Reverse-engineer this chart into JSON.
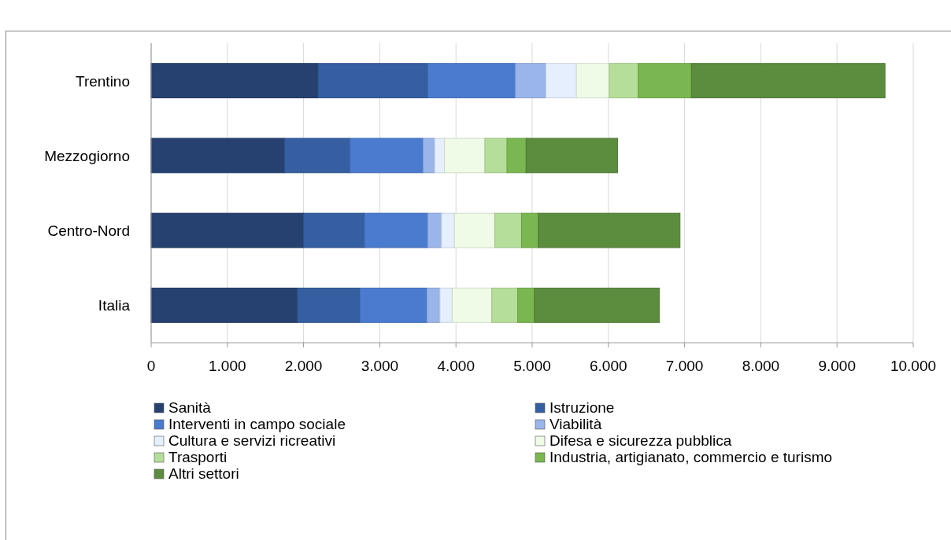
{
  "chart_data": {
    "type": "bar",
    "orientation": "horizontal",
    "stacked": true,
    "categories": [
      "Trentino",
      "Mezzogiorno",
      "Centro-Nord",
      "Italia"
    ],
    "series": [
      {
        "name": "Sanità",
        "color": "#264170",
        "values": [
          2190,
          1750,
          2000,
          1920
        ]
      },
      {
        "name": "Istruzione",
        "color": "#355fa0",
        "values": [
          1440,
          860,
          800,
          820
        ]
      },
      {
        "name": "Interventi in campo sociale",
        "color": "#4a7bcf",
        "values": [
          1150,
          960,
          830,
          880
        ]
      },
      {
        "name": "Viabilità",
        "color": "#9ab5ea",
        "values": [
          400,
          150,
          180,
          170
        ]
      },
      {
        "name": "Cultura e servizi ricreativi",
        "color": "#e6effd",
        "values": [
          400,
          130,
          170,
          160
        ]
      },
      {
        "name": "Difesa e sicurezza pubblica",
        "color": "#effbe6",
        "values": [
          430,
          530,
          530,
          520
        ]
      },
      {
        "name": "Trasporti",
        "color": "#b5de9a",
        "values": [
          380,
          290,
          350,
          340
        ]
      },
      {
        "name": "Industria, artigianato, commercio e turismo",
        "color": "#7ab750",
        "values": [
          700,
          250,
          220,
          220
        ]
      },
      {
        "name": "Altri settori",
        "color": "#5c8c3e",
        "values": [
          2540,
          1200,
          1860,
          1640
        ]
      }
    ],
    "xlim": [
      0,
      10000
    ],
    "xticks": [
      0,
      {
        "value": 1000,
        "label": "1.000"
      },
      {
        "value": 2000,
        "label": "2.000"
      },
      {
        "value": 3000,
        "label": "3.000"
      },
      {
        "value": 4000,
        "label": "4.000"
      },
      {
        "value": 5000,
        "label": "5.000"
      },
      {
        "value": 6000,
        "label": "6.000"
      },
      {
        "value": 7000,
        "label": "7.000"
      },
      {
        "value": 8000,
        "label": "8.000"
      },
      {
        "value": 9000,
        "label": "9.000"
      },
      {
        "value": 10000,
        "label": "10.000"
      }
    ],
    "grid": "x",
    "legend": "bottom"
  }
}
